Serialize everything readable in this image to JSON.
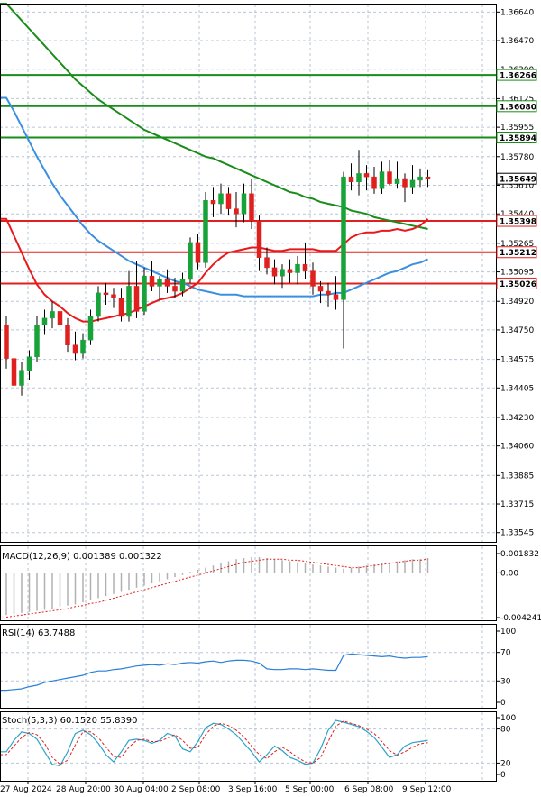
{
  "colors": {
    "up": "#18a33a",
    "down": "#e0201e",
    "sma_red": "#e8191b",
    "sma_blue": "#3b8fe0",
    "sma_green": "#1a8c1a",
    "level_green": "#1a8c1a",
    "level_red": "#e0201e",
    "macd_signal": "#e02020",
    "macd_hist": "#b0b0b0",
    "rsi": "#2a7fd6",
    "stoch_k": "#2aa3c9",
    "stoch_d": "#e02020",
    "grid": "#b9c6d6"
  },
  "price_axis": {
    "ticks": [
      "1.36640",
      "1.36470",
      "1.36300",
      "1.36125",
      "1.35955",
      "1.35780",
      "1.35610",
      "1.35440",
      "1.35265",
      "1.35095",
      "1.34920",
      "1.34750",
      "1.34575",
      "1.34405",
      "1.34230",
      "1.34060",
      "1.33885",
      "1.33715",
      "1.33545"
    ]
  },
  "levels": [
    {
      "value": 1.36266,
      "label": "1.36266",
      "color": "green"
    },
    {
      "value": 1.3608,
      "label": "1.36080",
      "color": "green"
    },
    {
      "value": 1.35894,
      "label": "1.35894",
      "color": "green"
    },
    {
      "value": 1.35398,
      "label": "1.35398",
      "color": "red"
    },
    {
      "value": 1.35212,
      "label": "1.35212",
      "color": "red"
    },
    {
      "value": 1.35026,
      "label": "1.35026",
      "color": "red"
    }
  ],
  "current_price": {
    "value": 1.35649,
    "label": "1.35649"
  },
  "time_axis": {
    "labels": [
      "27 Aug 2024",
      "28 Aug 20:00",
      "30 Aug 04:00",
      "2 Sep 08:00",
      "3 Sep 16:00",
      "5 Sep 00:00",
      "6 Sep 08:00",
      "9 Sep 12:00"
    ]
  },
  "macd": {
    "label": "MACD(12,26,9) 0.001389 0.001322",
    "ticks": [
      "0.001832",
      "0.00",
      "-0.004241"
    ]
  },
  "rsi": {
    "label": "RSI(14) 63.7488",
    "ticks": [
      "100",
      "70",
      "30",
      "0"
    ]
  },
  "stoch": {
    "label": "Stoch(5,3,3) 60.1520 55.8390",
    "ticks": [
      "100",
      "80",
      "20",
      "0"
    ]
  },
  "chart_data": {
    "type": "candlestick",
    "title": "",
    "ylim": [
      1.3349,
      1.3669
    ],
    "candles": [
      [
        1.3478,
        1.3483,
        1.3452,
        1.3458
      ],
      [
        1.3458,
        1.3462,
        1.3437,
        1.3442
      ],
      [
        1.3442,
        1.3456,
        1.3436,
        1.3451
      ],
      [
        1.3451,
        1.3463,
        1.3445,
        1.3459
      ],
      [
        1.3459,
        1.3483,
        1.3456,
        1.3478
      ],
      [
        1.3478,
        1.3487,
        1.3472,
        1.3482
      ],
      [
        1.3482,
        1.3492,
        1.3476,
        1.3486
      ],
      [
        1.3486,
        1.3489,
        1.3474,
        1.3478
      ],
      [
        1.3478,
        1.3482,
        1.3462,
        1.3466
      ],
      [
        1.3466,
        1.3474,
        1.3457,
        1.3461
      ],
      [
        1.3461,
        1.3473,
        1.3458,
        1.3469
      ],
      [
        1.3469,
        1.3487,
        1.3466,
        1.3483
      ],
      [
        1.3483,
        1.3501,
        1.348,
        1.3497
      ],
      [
        1.3497,
        1.3503,
        1.349,
        1.3496
      ],
      [
        1.3496,
        1.35,
        1.3488,
        1.3494
      ],
      [
        1.3494,
        1.35,
        1.348,
        1.3483
      ],
      [
        1.3483,
        1.351,
        1.348,
        1.3501
      ],
      [
        1.3501,
        1.3516,
        1.3482,
        1.3486
      ],
      [
        1.3486,
        1.3512,
        1.3484,
        1.3507
      ],
      [
        1.3507,
        1.3516,
        1.3498,
        1.3501
      ],
      [
        1.3501,
        1.3507,
        1.3493,
        1.3505
      ],
      [
        1.3505,
        1.3511,
        1.3497,
        1.3501
      ],
      [
        1.3501,
        1.3506,
        1.3494,
        1.3498
      ],
      [
        1.3498,
        1.3509,
        1.3495,
        1.3505
      ],
      [
        1.3505,
        1.353,
        1.3503,
        1.3527
      ],
      [
        1.3527,
        1.3532,
        1.3511,
        1.3515
      ],
      [
        1.3515,
        1.3557,
        1.3512,
        1.3552
      ],
      [
        1.3552,
        1.356,
        1.3542,
        1.355
      ],
      [
        1.355,
        1.3562,
        1.3544,
        1.3556
      ],
      [
        1.3556,
        1.356,
        1.3543,
        1.3547
      ],
      [
        1.3547,
        1.3557,
        1.3536,
        1.3544
      ],
      [
        1.3544,
        1.3562,
        1.3539,
        1.3556
      ],
      [
        1.3556,
        1.3565,
        1.3535,
        1.354
      ],
      [
        1.354,
        1.3543,
        1.351,
        1.3518
      ],
      [
        1.3518,
        1.3524,
        1.3508,
        1.3512
      ],
      [
        1.3512,
        1.3517,
        1.3502,
        1.3507
      ],
      [
        1.3507,
        1.3514,
        1.35,
        1.3511
      ],
      [
        1.3511,
        1.3517,
        1.3503,
        1.3509
      ],
      [
        1.3509,
        1.3519,
        1.3502,
        1.3514
      ],
      [
        1.3514,
        1.3527,
        1.3505,
        1.351
      ],
      [
        1.351,
        1.3515,
        1.3496,
        1.3501
      ],
      [
        1.3501,
        1.3504,
        1.3491,
        1.3498
      ],
      [
        1.3498,
        1.3503,
        1.3489,
        1.3496
      ],
      [
        1.3496,
        1.3507,
        1.3487,
        1.3493
      ],
      [
        1.3493,
        1.3569,
        1.3464,
        1.3566
      ],
      [
        1.3566,
        1.3574,
        1.3558,
        1.3563
      ],
      [
        1.3563,
        1.3582,
        1.3555,
        1.3568
      ],
      [
        1.3568,
        1.3573,
        1.3558,
        1.3566
      ],
      [
        1.3566,
        1.3572,
        1.3556,
        1.3559
      ],
      [
        1.3559,
        1.3575,
        1.3556,
        1.3569
      ],
      [
        1.3569,
        1.3576,
        1.3561,
        1.3562
      ],
      [
        1.3562,
        1.3575,
        1.3559,
        1.3565
      ],
      [
        1.3565,
        1.3568,
        1.3551,
        1.356
      ],
      [
        1.356,
        1.3573,
        1.3556,
        1.3564
      ],
      [
        1.3564,
        1.3571,
        1.356,
        1.3566
      ],
      [
        1.3566,
        1.357,
        1.356,
        1.3565
      ]
    ],
    "sma_red": [
      1.3541,
      1.3531,
      1.3521,
      1.3511,
      1.3502,
      1.3496,
      1.3492,
      1.3489,
      1.3485,
      1.3482,
      1.348,
      1.348,
      1.3481,
      1.3482,
      1.3483,
      1.3484,
      1.3485,
      1.3487,
      1.3489,
      1.3491,
      1.3493,
      1.3494,
      1.3495,
      1.3497,
      1.35,
      1.3503,
      1.3509,
      1.3514,
      1.3518,
      1.3521,
      1.3522,
      1.3523,
      1.3524,
      1.3524,
      1.3523,
      1.3522,
      1.3522,
      1.3523,
      1.3523,
      1.3523,
      1.3523,
      1.3522,
      1.3522,
      1.3522,
      1.3526,
      1.353,
      1.3532,
      1.3533,
      1.3533,
      1.3534,
      1.3534,
      1.3535,
      1.3534,
      1.3535,
      1.3537,
      1.3541
    ],
    "sma_blue": [
      1.3613,
      1.3605,
      1.3596,
      1.3587,
      1.3578,
      1.357,
      1.3562,
      1.3555,
      1.3549,
      1.3543,
      1.3537,
      1.3532,
      1.3528,
      1.3525,
      1.3522,
      1.3519,
      1.3516,
      1.3514,
      1.3512,
      1.351,
      1.3508,
      1.3506,
      1.3504,
      1.3503,
      1.3501,
      1.3499,
      1.3498,
      1.3497,
      1.3496,
      1.3496,
      1.3496,
      1.3495,
      1.3495,
      1.3495,
      1.3495,
      1.3495,
      1.3495,
      1.3495,
      1.3495,
      1.3495,
      1.3495,
      1.3496,
      1.3496,
      1.3497,
      1.3497,
      1.3499,
      1.3501,
      1.3503,
      1.3505,
      1.3507,
      1.3509,
      1.351,
      1.3512,
      1.3514,
      1.3515,
      1.3517
    ],
    "sma_green": [
      1.3669,
      1.3664,
      1.3659,
      1.3654,
      1.3649,
      1.3644,
      1.3639,
      1.3634,
      1.3629,
      1.3624,
      1.362,
      1.3616,
      1.3612,
      1.3609,
      1.3606,
      1.3603,
      1.36,
      1.3597,
      1.3594,
      1.3592,
      1.359,
      1.3588,
      1.3586,
      1.3584,
      1.3582,
      1.358,
      1.3578,
      1.3577,
      1.3575,
      1.3573,
      1.3571,
      1.3569,
      1.3567,
      1.3565,
      1.3563,
      1.3561,
      1.3559,
      1.3557,
      1.3556,
      1.3554,
      1.3553,
      1.3551,
      1.355,
      1.3549,
      1.3548,
      1.3546,
      1.3545,
      1.3544,
      1.3542,
      1.3541,
      1.354,
      1.3539,
      1.3538,
      1.3537,
      1.3536,
      1.3535
    ],
    "macd": {
      "ylim": [
        -0.004241,
        0.001832
      ],
      "hist": [
        -0.004,
        -0.0039,
        -0.0038,
        -0.0037,
        -0.0036,
        -0.0035,
        -0.0034,
        -0.0032,
        -0.0031,
        -0.003,
        -0.0028,
        -0.0026,
        -0.0024,
        -0.0022,
        -0.002,
        -0.0018,
        -0.0016,
        -0.0014,
        -0.0012,
        -0.001,
        -0.0008,
        -0.0006,
        -0.0004,
        -0.0002,
        0.0001,
        0.0003,
        0.0005,
        0.0007,
        0.0009,
        0.0011,
        0.0013,
        0.0014,
        0.0015,
        0.0015,
        0.0014,
        0.0013,
        0.0012,
        0.0011,
        0.001,
        0.0009,
        0.0008,
        0.0007,
        0.0006,
        0.0005,
        0.0004,
        0.0005,
        0.0006,
        0.0007,
        0.0008,
        0.0009,
        0.001,
        0.0011,
        0.0012,
        0.0013,
        0.0013,
        0.0014
      ],
      "signal": [
        -0.0042,
        -0.0041,
        -0.004,
        -0.0039,
        -0.0038,
        -0.0037,
        -0.0036,
        -0.0035,
        -0.0034,
        -0.0032,
        -0.0031,
        -0.0029,
        -0.0028,
        -0.0026,
        -0.0024,
        -0.0022,
        -0.002,
        -0.0018,
        -0.0016,
        -0.0014,
        -0.0012,
        -0.001,
        -0.0008,
        -0.0006,
        -0.0004,
        -0.0002,
        0.0,
        0.0002,
        0.0004,
        0.0006,
        0.0008,
        0.001,
        0.0011,
        0.0012,
        0.0013,
        0.0013,
        0.0013,
        0.0012,
        0.0012,
        0.0011,
        0.001,
        0.0009,
        0.0008,
        0.0007,
        0.0006,
        0.0005,
        0.0005,
        0.0006,
        0.0007,
        0.0008,
        0.0009,
        0.001,
        0.0011,
        0.0012,
        0.0012,
        0.0013
      ]
    },
    "rsi": {
      "ylim": [
        0,
        100
      ],
      "values": [
        17,
        18,
        19,
        22,
        24,
        28,
        30,
        32,
        34,
        36,
        38,
        42,
        44,
        44,
        46,
        47,
        49,
        51,
        52,
        53,
        52,
        54,
        53,
        55,
        56,
        55,
        57,
        58,
        56,
        58,
        59,
        59,
        58,
        55,
        47,
        46,
        46,
        47,
        47,
        46,
        47,
        46,
        45,
        45,
        66,
        68,
        67,
        66,
        65,
        64,
        65,
        63,
        62,
        63,
        63,
        64
      ]
    },
    "stoch": {
      "ylim": [
        0,
        100
      ],
      "k": [
        40,
        60,
        75,
        72,
        62,
        40,
        18,
        15,
        40,
        72,
        78,
        70,
        55,
        35,
        22,
        40,
        60,
        62,
        60,
        55,
        60,
        72,
        68,
        45,
        40,
        58,
        82,
        90,
        88,
        80,
        70,
        55,
        40,
        22,
        35,
        50,
        42,
        30,
        25,
        18,
        20,
        45,
        78,
        95,
        92,
        88,
        84,
        76,
        65,
        48,
        30,
        35,
        50,
        56,
        58,
        60
      ],
      "d": [
        35,
        50,
        65,
        74,
        70,
        55,
        30,
        18,
        25,
        52,
        75,
        75,
        65,
        48,
        32,
        30,
        48,
        60,
        62,
        58,
        58,
        64,
        70,
        60,
        46,
        48,
        70,
        85,
        90,
        86,
        78,
        66,
        50,
        35,
        28,
        40,
        48,
        40,
        30,
        22,
        20,
        30,
        58,
        85,
        94,
        90,
        86,
        80,
        72,
        58,
        42,
        34,
        40,
        48,
        54,
        56
      ]
    }
  }
}
